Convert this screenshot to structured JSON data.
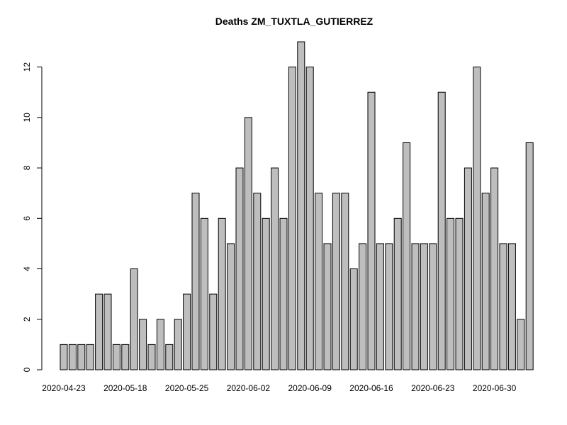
{
  "chart_data": {
    "type": "bar",
    "title": "Deaths ZM_TUXTLA_GUTIERREZ",
    "xlabel": "",
    "ylabel": "",
    "ylim": [
      0,
      13
    ],
    "yticks": [
      0,
      2,
      4,
      6,
      8,
      10,
      12
    ],
    "bar_color": "#bebebe",
    "values": [
      1,
      1,
      1,
      1,
      3,
      3,
      1,
      1,
      4,
      2,
      1,
      2,
      1,
      2,
      3,
      7,
      6,
      3,
      6,
      5,
      8,
      10,
      7,
      6,
      8,
      6,
      12,
      13,
      12,
      7,
      5,
      7,
      7,
      4,
      5,
      11,
      5,
      5,
      6,
      9,
      5,
      5,
      5,
      11,
      6,
      6,
      8,
      12,
      7,
      8,
      5,
      5,
      2,
      9
    ],
    "xtick_labels": [
      {
        "index": 0,
        "label": "2020-04-23"
      },
      {
        "index": 7,
        "label": "2020-05-18"
      },
      {
        "index": 14,
        "label": "2020-05-25"
      },
      {
        "index": 21,
        "label": "2020-06-02"
      },
      {
        "index": 28,
        "label": "2020-06-09"
      },
      {
        "index": 35,
        "label": "2020-06-16"
      },
      {
        "index": 42,
        "label": "2020-06-23"
      },
      {
        "index": 49,
        "label": "2020-06-30"
      }
    ]
  }
}
